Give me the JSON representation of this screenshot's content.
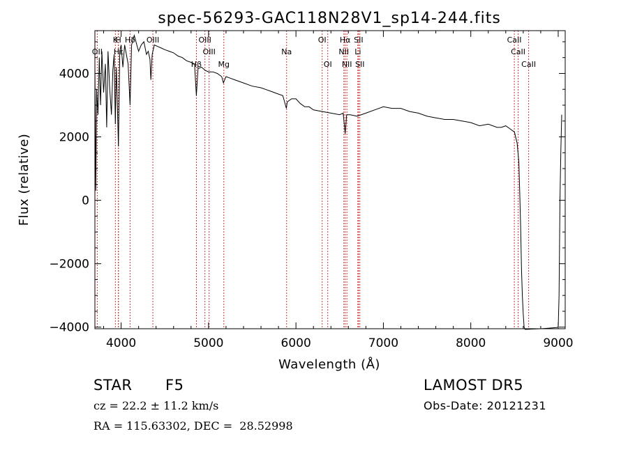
{
  "chart_data": {
    "type": "line",
    "title": "spec-56293-GAC118N28V1_sp14-244.fits",
    "xlabel": "Wavelength (Å)",
    "ylabel": "Flux (relative)",
    "xlim": [
      3700,
      9080
    ],
    "ylim": [
      -4050,
      5350
    ],
    "xticks": [
      4000,
      5000,
      6000,
      7000,
      8000,
      9000
    ],
    "yticks": [
      -4000,
      -2000,
      0,
      2000,
      4000
    ],
    "ytick_labels": [
      "−4000",
      "−2000",
      "0",
      "2000",
      "4000"
    ],
    "line_color": "#000000",
    "marker_color": "#cc3333",
    "lines": [
      {
        "label": "Hδ",
        "x": 4102,
        "row": 0
      },
      {
        "label": "K",
        "x": 3934,
        "row": 0
      },
      {
        "label": "H",
        "x": 3969,
        "row": 0
      },
      {
        "label": "OII",
        "x": 3727,
        "row": 1
      },
      {
        "label": "Hε",
        "x": 3970,
        "row": 1
      },
      {
        "label": "OIII",
        "x": 4363,
        "row": 0
      },
      {
        "label": "OIII",
        "x": 4959,
        "row": 0
      },
      {
        "label": "OIII",
        "x": 5007,
        "row": 1
      },
      {
        "label": "Hβ",
        "x": 4861,
        "row": 2
      },
      {
        "label": "Mg",
        "x": 5175,
        "row": 2
      },
      {
        "label": "Na",
        "x": 5893,
        "row": 1
      },
      {
        "label": "OI",
        "x": 6300,
        "row": 0
      },
      {
        "label": "OI",
        "x": 6364,
        "row": 2
      },
      {
        "label": "Hα",
        "x": 6563,
        "row": 0
      },
      {
        "label": "SII",
        "x": 6716,
        "row": 0
      },
      {
        "label": "NII",
        "x": 6548,
        "row": 1
      },
      {
        "label": "Li",
        "x": 6708,
        "row": 1
      },
      {
        "label": "NII",
        "x": 6583,
        "row": 2
      },
      {
        "label": "SII",
        "x": 6731,
        "row": 2
      },
      {
        "label": "CaII",
        "x": 8498,
        "row": 0
      },
      {
        "label": "CaII",
        "x": 8542,
        "row": 1
      },
      {
        "label": "CaII",
        "x": 8662,
        "row": 2
      }
    ],
    "series": [
      {
        "x": [
          3700,
          3710,
          3720,
          3735,
          3750,
          3765,
          3780,
          3800,
          3820,
          3835,
          3850,
          3870,
          3889,
          3905,
          3920,
          3934,
          3945,
          3955,
          3969,
          3985,
          4000,
          4020,
          4040,
          4060,
          4080,
          4102,
          4120,
          4150,
          4180,
          4200,
          4230,
          4260,
          4290,
          4310,
          4330,
          4340,
          4355,
          4380,
          4420,
          4460,
          4500,
          4550,
          4600,
          4650,
          4700,
          4750,
          4800,
          4840,
          4861,
          4880,
          4920,
          4960,
          5000,
          5050,
          5100,
          5150,
          5170,
          5185,
          5200,
          5250,
          5300,
          5400,
          5500,
          5600,
          5700,
          5800,
          5850,
          5890,
          5900,
          5950,
          6000,
          6050,
          6100,
          6150,
          6200,
          6300,
          6400,
          6500,
          6540,
          6563,
          6580,
          6620,
          6700,
          6800,
          6900,
          7000,
          7100,
          7200,
          7300,
          7400,
          7500,
          7600,
          7700,
          7800,
          7900,
          8000,
          8100,
          8200,
          8300,
          8350,
          8400,
          8450,
          8500,
          8530,
          8550,
          8560,
          8570,
          8580,
          8590,
          8600,
          8610,
          8620,
          8640,
          8700,
          8800,
          8900,
          8980,
          9000,
          9010,
          9020,
          9030,
          9040
        ],
        "y": [
          4300,
          300,
          3500,
          2700,
          4500,
          3000,
          4700,
          3400,
          4300,
          2300,
          4700,
          3500,
          2700,
          4100,
          4600,
          2400,
          4200,
          3300,
          1700,
          4700,
          4900,
          4200,
          4900,
          4600,
          4300,
          3000,
          4900,
          5200,
          4900,
          4700,
          4900,
          5000,
          4600,
          4700,
          4450,
          3800,
          4600,
          4900,
          4850,
          4800,
          4750,
          4700,
          4650,
          4550,
          4500,
          4400,
          4350,
          4300,
          3300,
          4150,
          4200,
          4100,
          4050,
          4050,
          4000,
          3900,
          3700,
          3800,
          3900,
          3850,
          3800,
          3700,
          3600,
          3550,
          3450,
          3350,
          3300,
          2900,
          3100,
          3200,
          3200,
          3050,
          2950,
          2950,
          2850,
          2800,
          2750,
          2700,
          2750,
          2100,
          2700,
          2700,
          2650,
          2750,
          2850,
          2950,
          2900,
          2900,
          2800,
          2750,
          2650,
          2600,
          2550,
          2550,
          2500,
          2450,
          2350,
          2400,
          2300,
          2300,
          2350,
          2250,
          2150,
          1800,
          1200,
          200,
          -800,
          -2200,
          -3000,
          -3600,
          -4000,
          -4070,
          -4070,
          -4060,
          -4050,
          -4030,
          -4010,
          -4000,
          -3000,
          0,
          1500,
          2700
        ]
      }
    ]
  },
  "info": {
    "object_type": "STAR",
    "subclass": "F5",
    "survey": "LAMOST DR5",
    "redshift": "cz = 22.2 ± 11.2 km/s",
    "obs_date": "Obs-Date: 20121231",
    "coords": "RA = 115.63302, DEC =  28.52998"
  }
}
